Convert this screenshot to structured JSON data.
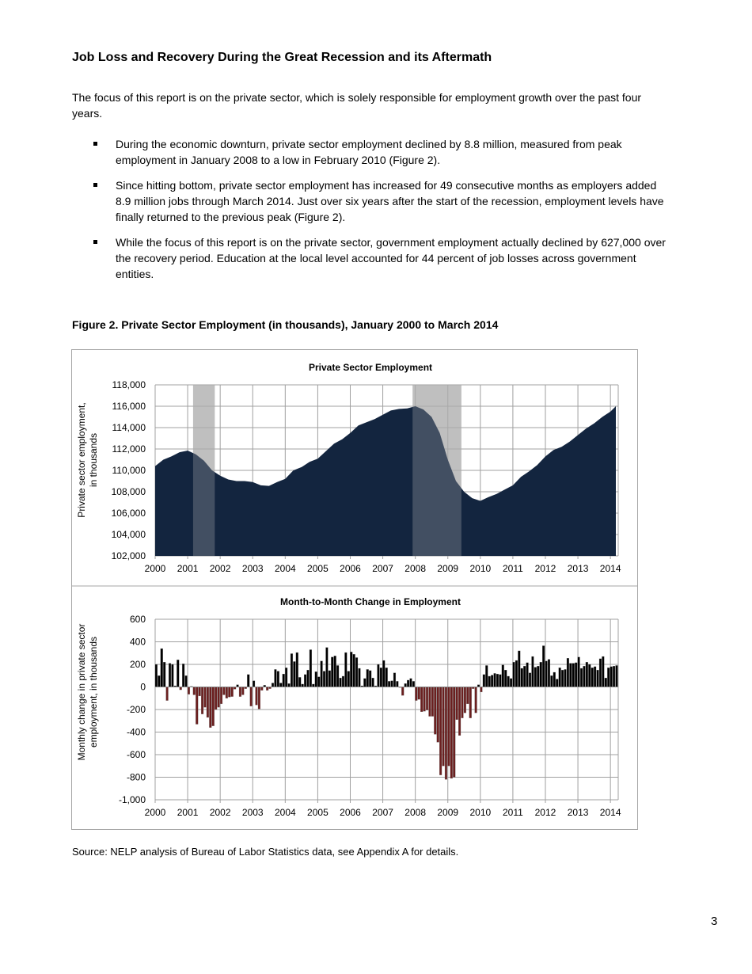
{
  "heading": "Job Loss and Recovery During the Great Recession and its Aftermath",
  "intro": "The focus of this report is on the private sector, which is solely responsible for employment growth over the past four years.",
  "bullets": [
    "During the economic downturn, private sector employment declined by 8.8 million, measured from peak employment in January 2008 to a low in February 2010 (Figure 2).",
    "Since hitting bottom, private sector employment has increased for 49 consecutive months as employers added 8.9 million jobs through March 2014. Just over six years after the start of the recession, employment levels have finally returned to the previous peak (Figure 2).",
    "While the focus of this report is on the private sector, government employment actually declined by 627,000 over the recovery period. Education at the local level accounted for 44 percent of job losses across government entities."
  ],
  "figure_caption": "Figure 2. Private Sector Employment (in thousands), January 2000 to March 2014",
  "source": "Source: NELP analysis of Bureau of Labor Statistics data, see Appendix A for details.",
  "page_number": "3",
  "chart_data": [
    {
      "type": "area",
      "title": "Private Sector Employment",
      "ylabel": "Private sector employment, in thousands",
      "xlabel": "",
      "ylim": [
        102000,
        118000
      ],
      "yticks": [
        "102,000",
        "104,000",
        "106,000",
        "108,000",
        "110,000",
        "112,000",
        "114,000",
        "116,000",
        "118,000"
      ],
      "xticks": [
        "2000",
        "2001",
        "2002",
        "2003",
        "2004",
        "2005",
        "2006",
        "2007",
        "2008",
        "2009",
        "2010",
        "2011",
        "2012",
        "2013",
        "2014"
      ],
      "grid": true,
      "colors": {
        "area": "#13253f",
        "recession": "#bfbfbf"
      },
      "recessions": [
        [
          "2001-03",
          "2001-11"
        ],
        [
          "2007-12",
          "2009-06"
        ]
      ],
      "x": [
        "2000-01",
        "2000-04",
        "2000-07",
        "2000-10",
        "2001-01",
        "2001-04",
        "2001-07",
        "2001-10",
        "2002-01",
        "2002-04",
        "2002-07",
        "2002-10",
        "2003-01",
        "2003-04",
        "2003-07",
        "2003-10",
        "2004-01",
        "2004-04",
        "2004-07",
        "2004-10",
        "2005-01",
        "2005-04",
        "2005-07",
        "2005-10",
        "2006-01",
        "2006-04",
        "2006-07",
        "2006-10",
        "2007-01",
        "2007-04",
        "2007-07",
        "2007-10",
        "2008-01",
        "2008-04",
        "2008-07",
        "2008-10",
        "2009-01",
        "2009-04",
        "2009-07",
        "2009-10",
        "2010-01",
        "2010-04",
        "2010-07",
        "2010-10",
        "2011-01",
        "2011-04",
        "2011-07",
        "2011-10",
        "2012-01",
        "2012-04",
        "2012-07",
        "2012-10",
        "2013-01",
        "2013-04",
        "2013-07",
        "2013-10",
        "2014-01",
        "2014-03"
      ],
      "values": [
        110400,
        111000,
        111300,
        111700,
        111850,
        111500,
        110900,
        110000,
        109500,
        109150,
        109000,
        109000,
        108900,
        108600,
        108550,
        108900,
        109200,
        110000,
        110300,
        110800,
        111100,
        111800,
        112500,
        112900,
        113500,
        114200,
        114500,
        114800,
        115200,
        115600,
        115750,
        115800,
        116000,
        115700,
        115000,
        113500,
        111000,
        109000,
        108000,
        107400,
        107150,
        107500,
        107800,
        108200,
        108600,
        109400,
        109900,
        110500,
        111300,
        111900,
        112200,
        112700,
        113300,
        113900,
        114400,
        115000,
        115500,
        116000
      ]
    },
    {
      "type": "bar",
      "title": "Month-to-Month Change in Employment",
      "ylabel": "Monthly change in private sector employment, in thousands",
      "xlabel": "",
      "ylim": [
        -1000,
        600
      ],
      "yticks": [
        "-1,000",
        "-800",
        "-600",
        "-400",
        "-200",
        "0",
        "200",
        "400",
        "600"
      ],
      "xticks": [
        "2000",
        "2001",
        "2002",
        "2003",
        "2004",
        "2005",
        "2006",
        "2007",
        "2008",
        "2009",
        "2010",
        "2011",
        "2012",
        "2013",
        "2014"
      ],
      "grid": true,
      "x_range": [
        "2000-01",
        "2014-03"
      ],
      "colors": {
        "positive": "#000000",
        "negative": "#6b1f1f"
      },
      "values": [
        200,
        100,
        340,
        220,
        -120,
        210,
        200,
        10,
        240,
        -25,
        205,
        100,
        -65,
        5,
        -70,
        -330,
        -80,
        -240,
        -180,
        -270,
        -360,
        -345,
        -200,
        -180,
        -150,
        -70,
        -100,
        -90,
        -85,
        -20,
        20,
        -85,
        -70,
        -15,
        110,
        -170,
        55,
        -160,
        -195,
        -30,
        15,
        -30,
        -15,
        35,
        155,
        140,
        35,
        115,
        170,
        30,
        295,
        225,
        305,
        85,
        25,
        110,
        150,
        330,
        25,
        135,
        90,
        230,
        140,
        350,
        145,
        265,
        275,
        190,
        80,
        95,
        305,
        140,
        310,
        290,
        260,
        165,
        10,
        75,
        155,
        145,
        80,
        10,
        200,
        170,
        235,
        170,
        50,
        55,
        125,
        50,
        -5,
        -75,
        30,
        60,
        75,
        50,
        -120,
        -110,
        -220,
        -215,
        -205,
        -260,
        -260,
        -420,
        -490,
        -780,
        -700,
        -820,
        -700,
        -810,
        -800,
        -290,
        -430,
        -275,
        -230,
        -150,
        -275,
        -15,
        -230,
        20,
        -45,
        110,
        190,
        95,
        105,
        120,
        115,
        110,
        195,
        150,
        95,
        75,
        220,
        235,
        320,
        165,
        185,
        215,
        125,
        270,
        175,
        185,
        220,
        365,
        230,
        245,
        100,
        130,
        70,
        170,
        150,
        155,
        255,
        210,
        210,
        215,
        265,
        165,
        185,
        220,
        200,
        170,
        180,
        150,
        250,
        270,
        80,
        170,
        180,
        185,
        190
      ]
    }
  ]
}
